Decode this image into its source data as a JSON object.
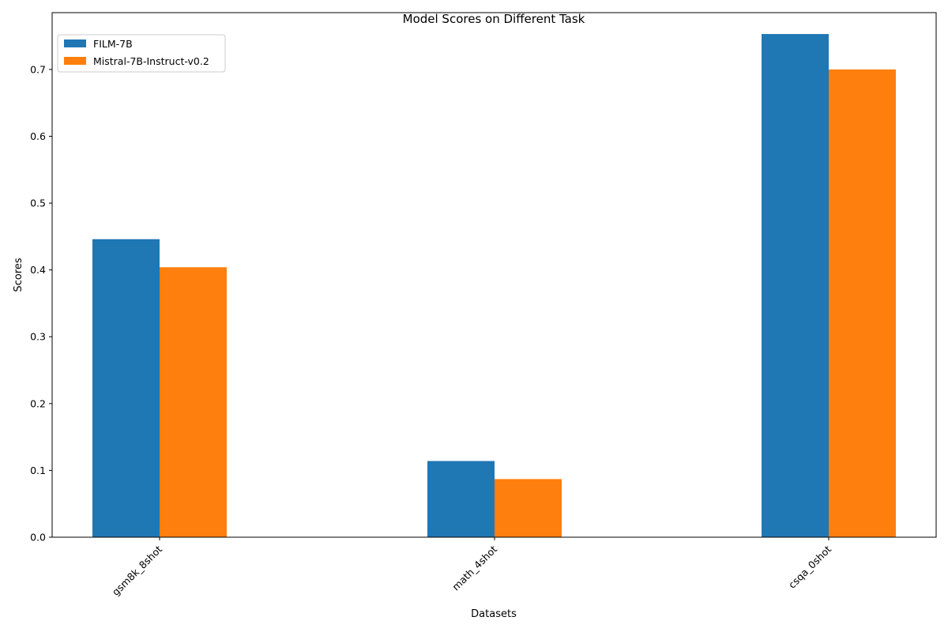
{
  "chart_data": {
    "type": "bar",
    "title": "Model Scores on Different Task",
    "xlabel": "Datasets",
    "ylabel": "Scores",
    "categories": [
      "gsm8k_8shot",
      "math_4shot",
      "csqa_0shot"
    ],
    "series": [
      {
        "name": "FILM-7B",
        "color": "#1f77b4",
        "values": [
          0.446,
          0.114,
          0.753
        ]
      },
      {
        "name": "Mistral-7B-Instruct-v0.2",
        "color": "#ff7f0e",
        "values": [
          0.404,
          0.087,
          0.7
        ]
      }
    ],
    "ylim": [
      0,
      0.785
    ],
    "yticks": [
      "0.0",
      "0.1",
      "0.2",
      "0.3",
      "0.4",
      "0.5",
      "0.6",
      "0.7"
    ],
    "grid": false,
    "legend_position": "top-left"
  }
}
